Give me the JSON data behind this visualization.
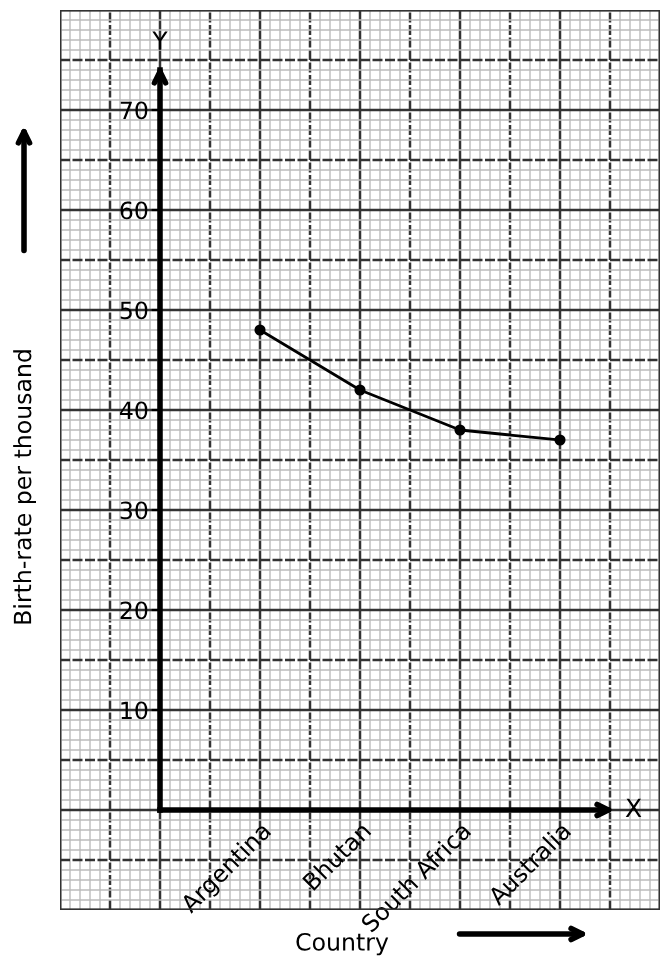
{
  "chart_data": {
    "type": "line",
    "xlabel": "Country",
    "ylabel": "Birth-rate per thousand",
    "categories": [
      "Argentina",
      "Bhutan",
      "South Africa",
      "Australia"
    ],
    "series": [
      {
        "color": "#000000",
        "values": [
          48,
          42,
          38,
          37
        ]
      }
    ],
    "ylim": [
      -10,
      80
    ],
    "yticks": [
      10,
      20,
      30,
      40,
      50,
      60,
      70
    ],
    "grid": true,
    "marker": "circle",
    "line_style": "solid",
    "annotations": [
      "Y",
      "X"
    ]
  }
}
